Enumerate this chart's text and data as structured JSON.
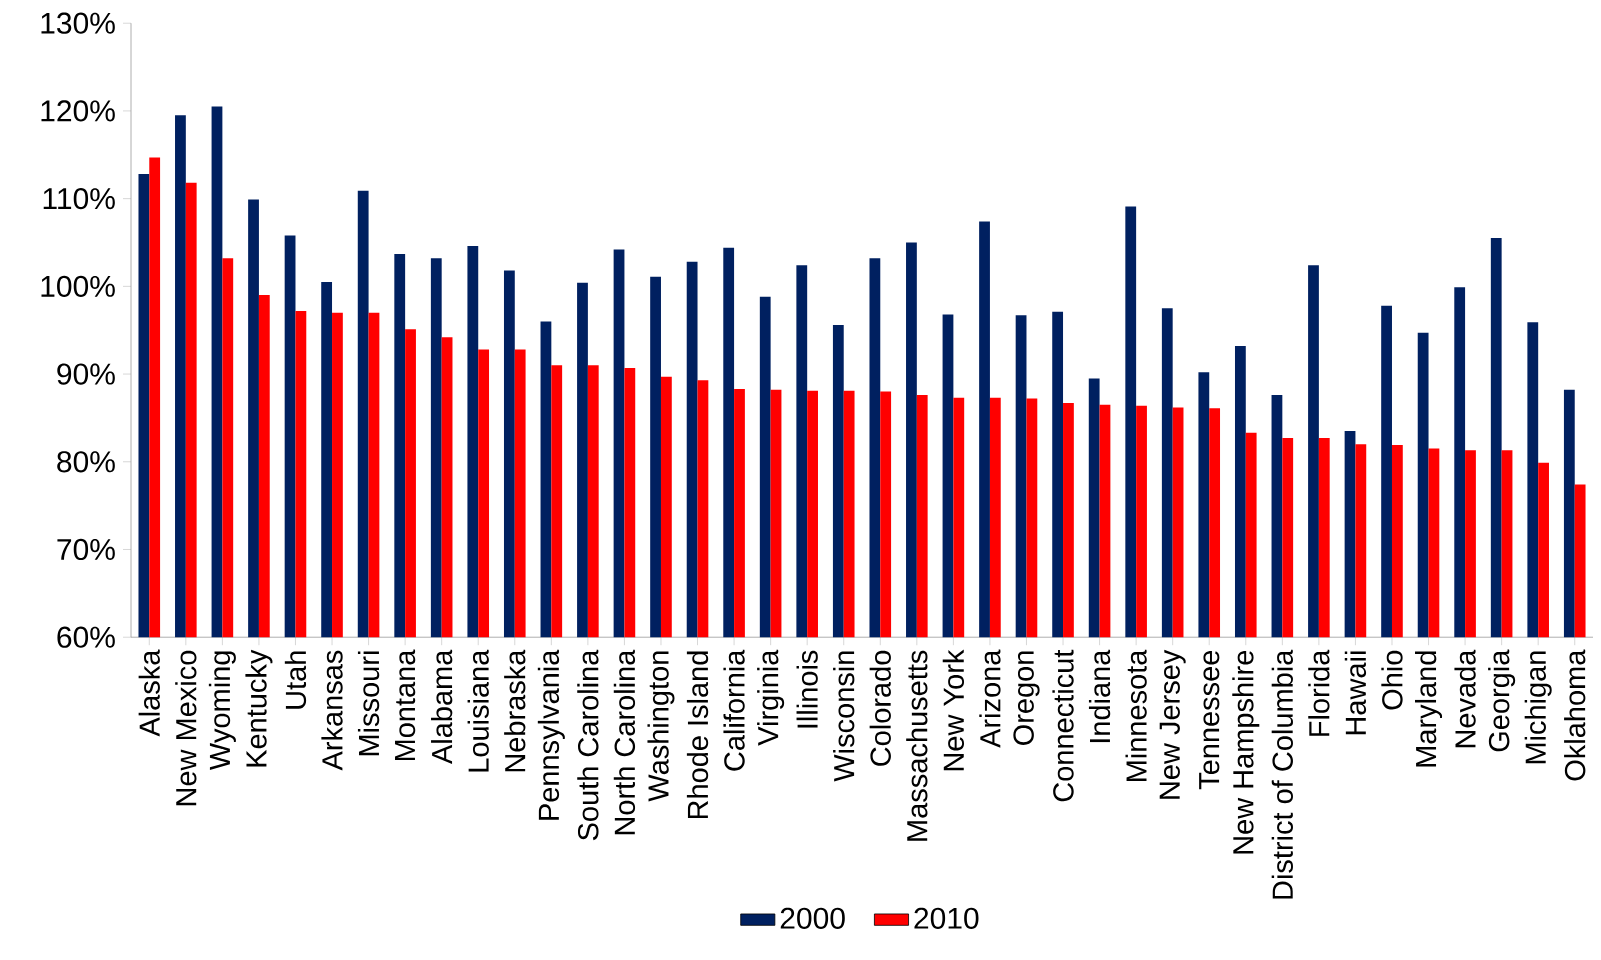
{
  "chart_data": {
    "type": "bar",
    "categories": [
      "Alaska",
      "New Mexico",
      "Wyoming",
      "Kentucky",
      "Utah",
      "Arkansas",
      "Missouri",
      "Montana",
      "Alabama",
      "Louisiana",
      "Nebraska",
      "Pennsylvania",
      "South Carolina",
      "North Carolina",
      "Washington",
      "Rhode Island",
      "California",
      "Virginia",
      "Illinois",
      "Wisconsin",
      "Colorado",
      "Massachusetts",
      "New York",
      "Arizona",
      "Oregon",
      "Connecticut",
      "Indiana",
      "Minnesota",
      "New Jersey",
      "Tennessee",
      "New Hampshire",
      "District of Columbia",
      "Florida",
      "Hawaii",
      "Ohio",
      "Maryland",
      "Nevada",
      "Georgia",
      "Michigan",
      "Oklahoma"
    ],
    "series": [
      {
        "name": "2000",
        "color": "#002060",
        "values": [
          112.8,
          119.5,
          120.5,
          109.9,
          105.8,
          100.5,
          110.9,
          103.7,
          103.2,
          104.6,
          101.8,
          96.0,
          100.4,
          104.2,
          101.1,
          102.8,
          104.4,
          98.8,
          102.4,
          95.6,
          103.2,
          105.0,
          96.8,
          107.4,
          96.7,
          97.1,
          89.5,
          109.1,
          97.5,
          90.2,
          93.2,
          87.6,
          102.4,
          83.5,
          97.8,
          94.7,
          99.9,
          105.5,
          95.9,
          88.2
        ]
      },
      {
        "name": "2010",
        "color": "#ff0000",
        "values": [
          114.7,
          111.8,
          103.2,
          99.0,
          97.2,
          97.0,
          97.0,
          95.1,
          94.2,
          92.8,
          92.8,
          91.0,
          91.0,
          90.7,
          89.7,
          89.3,
          88.3,
          88.2,
          88.1,
          88.1,
          88.0,
          87.6,
          87.3,
          87.3,
          87.2,
          86.7,
          86.5,
          86.4,
          86.2,
          86.1,
          83.3,
          82.7,
          82.7,
          82.0,
          81.9,
          81.5,
          81.3,
          81.3,
          79.9,
          77.4
        ]
      }
    ],
    "ylim": [
      60,
      130
    ],
    "yticks": [
      {
        "value": 60,
        "label": "60%"
      },
      {
        "value": 70,
        "label": "70%"
      },
      {
        "value": 80,
        "label": "80%"
      },
      {
        "value": 90,
        "label": "90%"
      },
      {
        "value": 100,
        "label": "100%"
      },
      {
        "value": 110,
        "label": "110%"
      },
      {
        "value": 120,
        "label": "120%"
      },
      {
        "value": 130,
        "label": "130%"
      }
    ],
    "legend": "bottom"
  }
}
